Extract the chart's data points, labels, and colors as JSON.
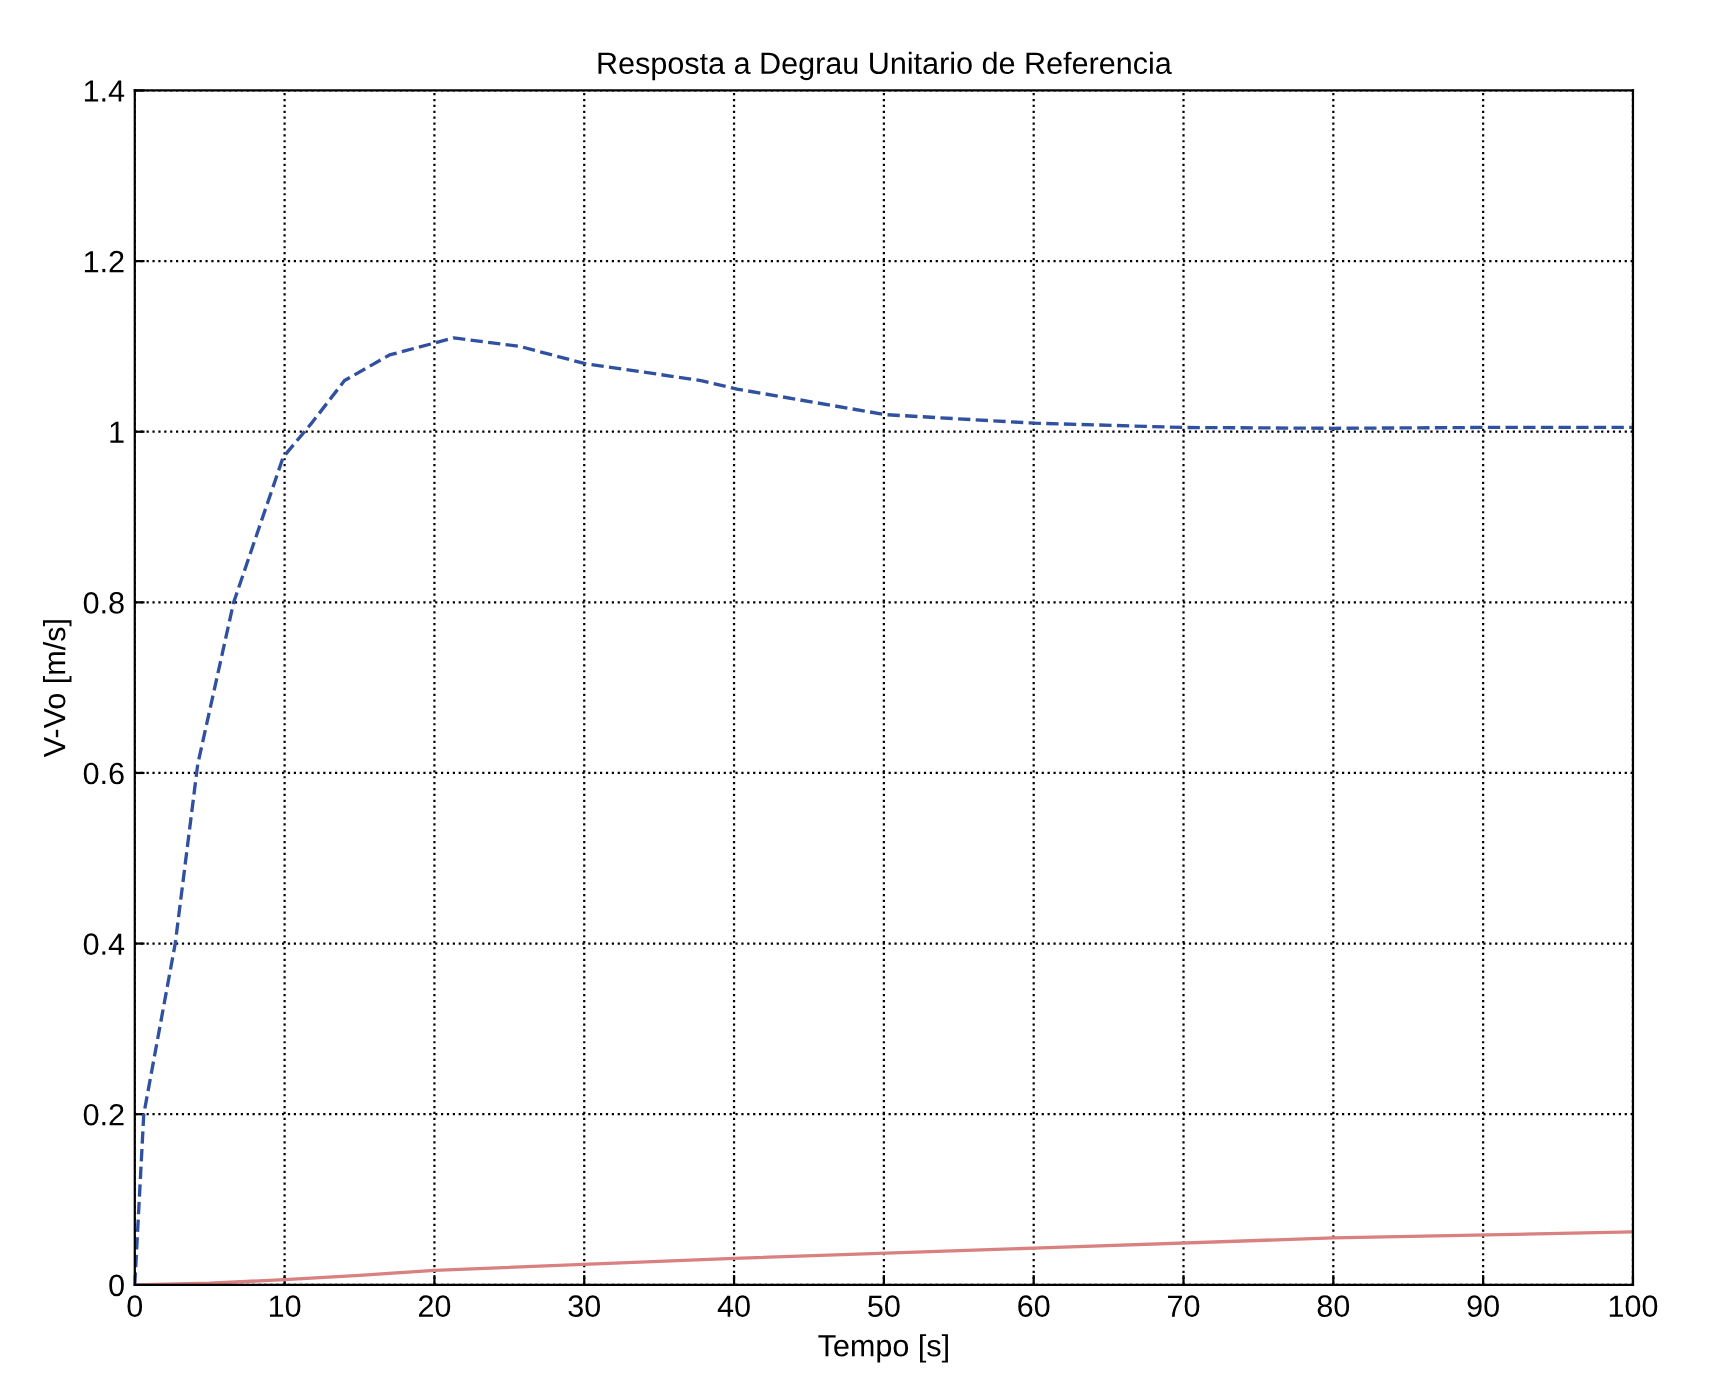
{
  "chart_data": {
    "type": "line",
    "title": "Resposta a Degrau Unitario de Referencia",
    "xlabel": "Tempo [s]",
    "ylabel": "V-Vo [m/s]",
    "xlim": [
      0,
      100
    ],
    "xticks": [
      0,
      10,
      20,
      30,
      40,
      50,
      60,
      70,
      80,
      90,
      100
    ],
    "ylim": [
      0,
      1.4
    ],
    "yticks": [
      0,
      0.2,
      0.4,
      0.6,
      0.8,
      1,
      1.2,
      1.4
    ],
    "grid": true,
    "series": [
      {
        "color": "#3050a0",
        "line_style": "dashed",
        "x": [
          0,
          0.6,
          2.7,
          4.2,
          6.6,
          9.9,
          11.8,
          14,
          17,
          21.3,
          25.7,
          30,
          37.8,
          40.2,
          50.1,
          60.1,
          70,
          80,
          90,
          100
        ],
        "values": [
          0,
          0.2,
          0.4,
          0.61,
          0.8,
          0.97,
          1.01,
          1.06,
          1.09,
          1.11,
          1.1,
          1.08,
          1.06,
          1.05,
          1.02,
          1.01,
          1.005,
          1.004,
          1.005,
          1.005
        ]
      },
      {
        "color": "#d98080",
        "line_style": "solid",
        "x": [
          0,
          5,
          10,
          15,
          20,
          40,
          60,
          80,
          100
        ],
        "values": [
          0,
          0.002,
          0.006,
          0.011,
          0.017,
          0.031,
          0.043,
          0.055,
          0.062
        ]
      }
    ]
  }
}
